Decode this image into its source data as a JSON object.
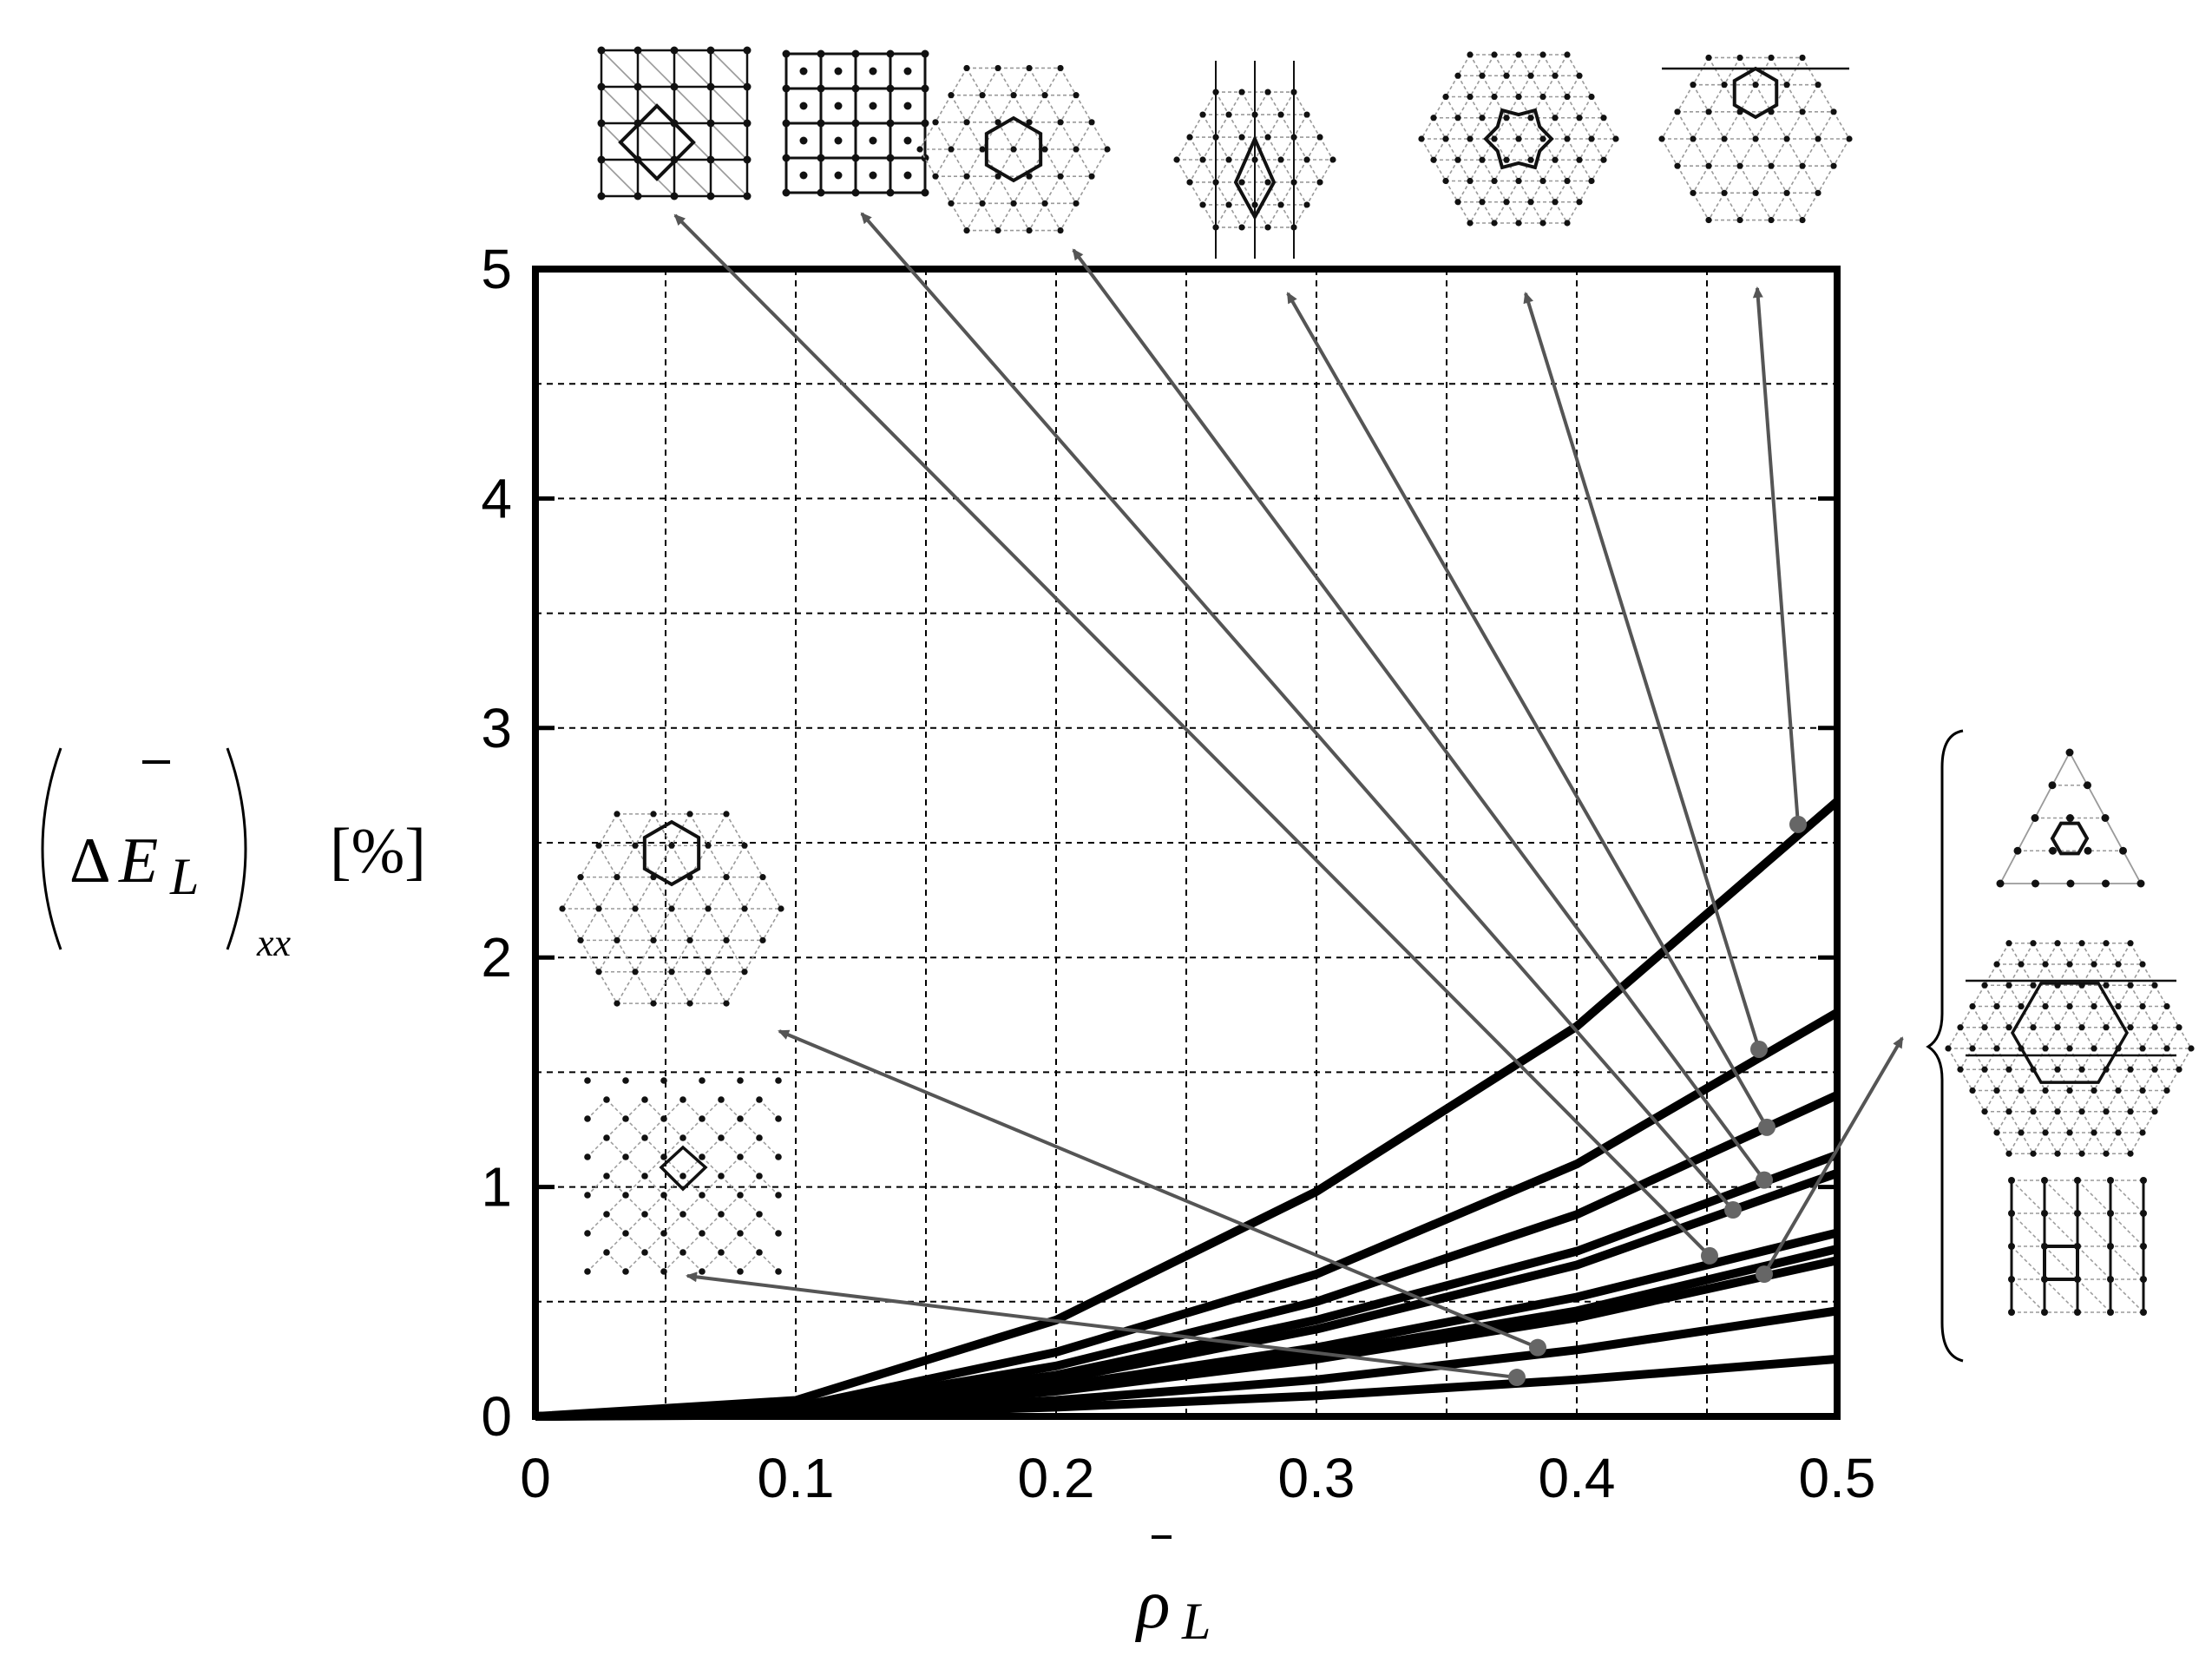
{
  "chart_data": {
    "type": "line",
    "title": "",
    "xlabel": "ρ̄_L",
    "ylabel_parts": {
      "delta": "Δ",
      "symbol": "E",
      "subscript": "L",
      "outer_subscript": "xx",
      "unit": "[%]"
    },
    "xlim": [
      0,
      0.5
    ],
    "ylim": [
      0,
      5
    ],
    "grid": true,
    "grid_style": "dashed",
    "x_ticks": [
      0,
      0.1,
      0.2,
      0.3,
      0.4,
      0.5
    ],
    "y_ticks": [
      0,
      1,
      2,
      3,
      4,
      5
    ],
    "x_tick_labels": [
      "0",
      "0.1",
      "0.2",
      "0.3",
      "0.4",
      "0.5"
    ],
    "y_tick_labels": [
      "0",
      "1",
      "2",
      "3",
      "4",
      "5"
    ],
    "x_minor_grid": [
      0.05,
      0.15,
      0.25,
      0.35,
      0.45
    ],
    "y_minor_grid": [
      0.5,
      1.5,
      2.5,
      3.5,
      4.5
    ],
    "series": [
      {
        "x": [
          0,
          0.1,
          0.2,
          0.3,
          0.4,
          0.5
        ],
        "y": [
          0,
          0.07,
          0.42,
          0.98,
          1.7,
          2.68
        ]
      },
      {
        "x": [
          0,
          0.1,
          0.2,
          0.3,
          0.4,
          0.5
        ],
        "y": [
          0,
          0.04,
          0.28,
          0.62,
          1.1,
          1.76
        ]
      },
      {
        "x": [
          0,
          0.1,
          0.2,
          0.3,
          0.4,
          0.5
        ],
        "y": [
          0,
          0.03,
          0.22,
          0.5,
          0.88,
          1.4
        ]
      },
      {
        "x": [
          0,
          0.1,
          0.2,
          0.3,
          0.4,
          0.5
        ],
        "y": [
          0,
          0.025,
          0.18,
          0.42,
          0.72,
          1.14
        ]
      },
      {
        "x": [
          0,
          0.1,
          0.2,
          0.3,
          0.4,
          0.5
        ],
        "y": [
          0,
          0.022,
          0.16,
          0.38,
          0.66,
          1.06
        ]
      },
      {
        "x": [
          0,
          0.1,
          0.2,
          0.3,
          0.4,
          0.5
        ],
        "y": [
          0,
          0.018,
          0.13,
          0.3,
          0.52,
          0.8
        ]
      },
      {
        "x": [
          0,
          0.1,
          0.2,
          0.3,
          0.4,
          0.5
        ],
        "y": [
          0,
          0.016,
          0.12,
          0.27,
          0.46,
          0.73
        ]
      },
      {
        "x": [
          0,
          0.1,
          0.2,
          0.3,
          0.4,
          0.5
        ],
        "y": [
          0,
          0.015,
          0.11,
          0.25,
          0.43,
          0.68
        ]
      },
      {
        "x": [
          0,
          0.1,
          0.2,
          0.3,
          0.4,
          0.5
        ],
        "y": [
          0,
          0.01,
          0.07,
          0.16,
          0.29,
          0.46
        ]
      },
      {
        "x": [
          0,
          0.1,
          0.2,
          0.3,
          0.4,
          0.5
        ],
        "y": [
          0,
          0.006,
          0.04,
          0.09,
          0.16,
          0.25
        ]
      }
    ],
    "callout_points": [
      {
        "x": 0.485,
        "y": 2.58,
        "target": "top-6"
      },
      {
        "x": 0.47,
        "y": 1.6,
        "target": "top-5"
      },
      {
        "x": 0.473,
        "y": 1.26,
        "target": "top-4"
      },
      {
        "x": 0.472,
        "y": 1.03,
        "target": "top-3"
      },
      {
        "x": 0.46,
        "y": 0.9,
        "target": "top-2"
      },
      {
        "x": 0.451,
        "y": 0.7,
        "target": "top-1"
      },
      {
        "x": 0.472,
        "y": 0.62,
        "target": "right-group"
      },
      {
        "x": 0.385,
        "y": 0.3,
        "target": "left-upper"
      },
      {
        "x": 0.377,
        "y": 0.17,
        "target": "left-lower"
      }
    ]
  },
  "colors": {
    "line": "#000000",
    "grid": "#000000",
    "arrow": "#555555",
    "callout_dot": "#666666",
    "inset": "#111111",
    "inset_light": "#9a9a9a"
  },
  "icons": [
    "lattice-inset-icon",
    "arrow-icon",
    "brace-icon"
  ]
}
